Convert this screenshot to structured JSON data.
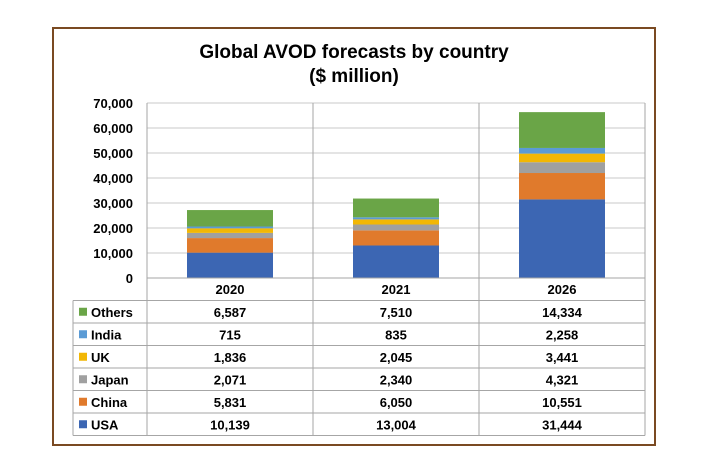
{
  "chart_data": {
    "type": "bar",
    "stacked": true,
    "title": "Global AVOD forecasts by country",
    "subtitle": "($ million)",
    "categories": [
      "2020",
      "2021",
      "2026"
    ],
    "ylim": [
      0,
      70000
    ],
    "yticks": [
      "0",
      "10,000",
      "20,000",
      "30,000",
      "40,000",
      "50,000",
      "60,000",
      "70,000"
    ],
    "grid": true,
    "series": [
      {
        "name": "USA",
        "color": "#3c66b3",
        "values": [
          10139,
          13004,
          31444
        ],
        "labels": [
          "10,139",
          "13,004",
          "31,444"
        ]
      },
      {
        "name": "China",
        "color": "#e07a2c",
        "values": [
          5831,
          6050,
          10551
        ],
        "labels": [
          "5,831",
          "6,050",
          "10,551"
        ]
      },
      {
        "name": "Japan",
        "color": "#a0a0a0",
        "values": [
          2071,
          2340,
          4321
        ],
        "labels": [
          "2,071",
          "2,340",
          "4,321"
        ]
      },
      {
        "name": "UK",
        "color": "#f2b705",
        "values": [
          1836,
          2045,
          3441
        ],
        "labels": [
          "1,836",
          "2,045",
          "3,441"
        ]
      },
      {
        "name": "India",
        "color": "#5b9bd5",
        "values": [
          715,
          835,
          2258
        ],
        "labels": [
          "715",
          "835",
          "2,258"
        ]
      },
      {
        "name": "Others",
        "color": "#6aa547",
        "values": [
          6587,
          7510,
          14334
        ],
        "labels": [
          "6,587",
          "7,510",
          "14,334"
        ]
      }
    ]
  }
}
